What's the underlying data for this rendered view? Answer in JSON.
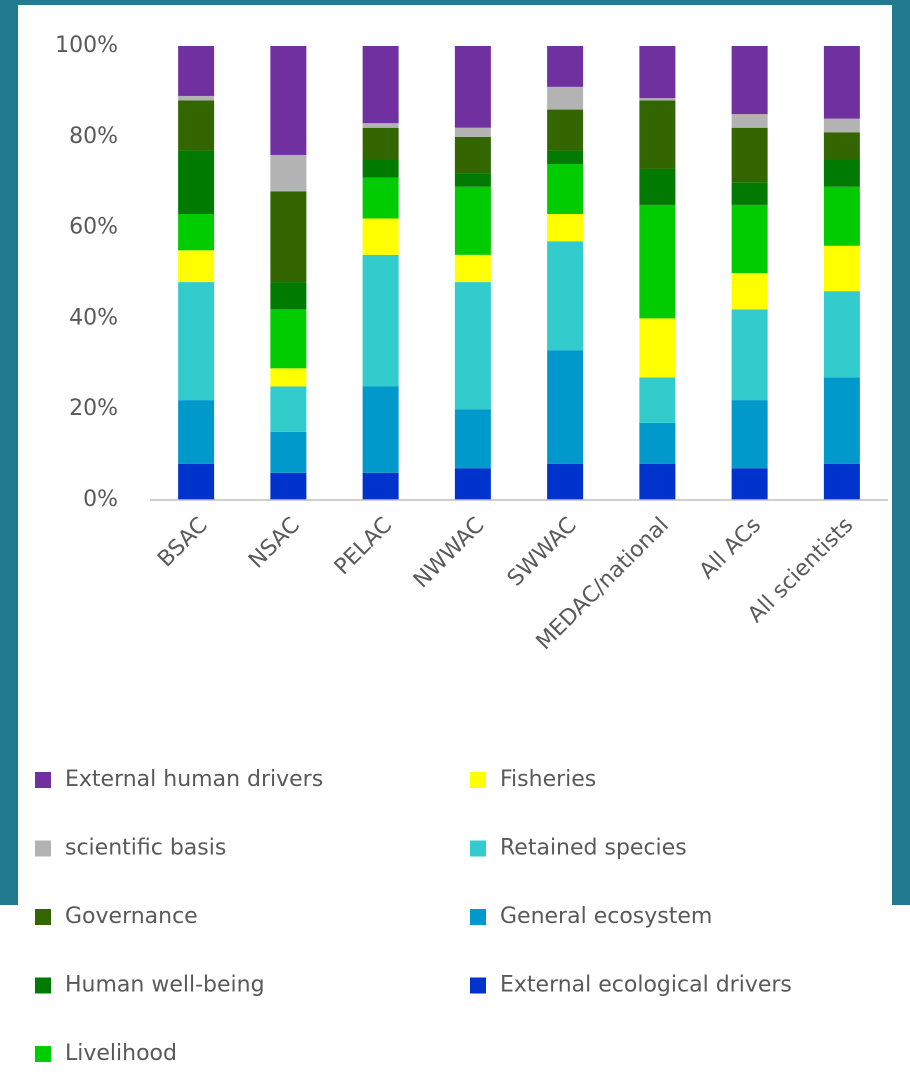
{
  "chart_data": {
    "type": "stacked_bar",
    "categories": [
      "BSAC",
      "NSAC",
      "PELAC",
      "NWWAC",
      "SWWAC",
      "MEDAC/national",
      "All ACs",
      "All scientists"
    ],
    "series": [
      {
        "name": "External ecological drivers",
        "color": "#0033cc",
        "values": [
          8,
          6,
          6,
          7,
          8,
          8,
          7,
          8
        ]
      },
      {
        "name": "General ecosystem",
        "color": "#0099cc",
        "values": [
          14,
          9,
          19,
          13,
          25,
          9,
          15,
          19
        ]
      },
      {
        "name": "Retained species",
        "color": "#33cccc",
        "values": [
          26,
          10,
          29,
          28,
          24,
          10,
          20,
          19
        ]
      },
      {
        "name": "Fisheries",
        "color": "#ffff00",
        "values": [
          7,
          4,
          8,
          6,
          6,
          13,
          8,
          10
        ]
      },
      {
        "name": "Livelihood",
        "color": "#00cc00",
        "values": [
          8,
          13,
          9,
          15,
          11,
          25,
          15,
          13
        ]
      },
      {
        "name": "Human well-being",
        "color": "#007a00",
        "values": [
          14,
          6,
          4,
          3,
          3,
          8,
          5,
          6
        ]
      },
      {
        "name": "Governance",
        "color": "#336600",
        "values": [
          11,
          20,
          7,
          8,
          9,
          15,
          12,
          6
        ]
      },
      {
        "name": "scientific basis",
        "color": "#b3b3b3",
        "values": [
          1,
          8,
          1,
          2,
          5,
          0.5,
          3,
          3
        ]
      },
      {
        "name": "External human drivers",
        "color": "#7030a0",
        "values": [
          11,
          24,
          17,
          18,
          9,
          11.5,
          15,
          16
        ]
      }
    ],
    "ylim": [
      0,
      100
    ],
    "yticks": [
      {
        "value": 0,
        "label": "0%"
      },
      {
        "value": 20,
        "label": "20%"
      },
      {
        "value": 40,
        "label": "40%"
      },
      {
        "value": 60,
        "label": "60%"
      },
      {
        "value": 80,
        "label": "80%"
      },
      {
        "value": 100,
        "label": "100%"
      }
    ],
    "grid": false
  }
}
